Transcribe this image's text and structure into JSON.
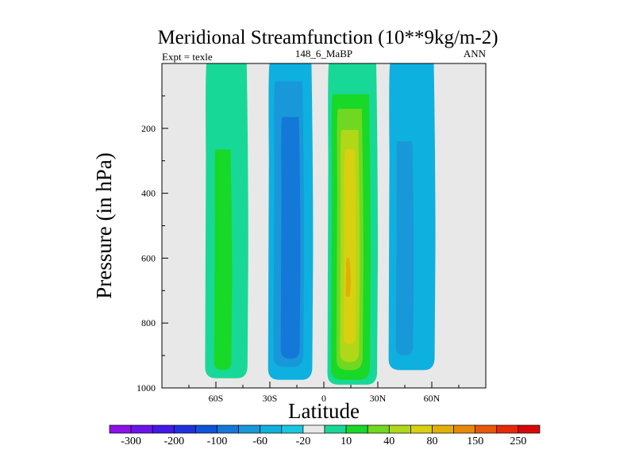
{
  "chart_data": {
    "type": "contour",
    "title": "Meridional Streamfunction (10**9kg/m-2)",
    "left_subtitle": "Expt = texle",
    "center_subtitle": "148_6_MaBP",
    "right_subtitle": "ANN",
    "xlabel": "Latitude",
    "ylabel": "Pressure (in hPa)",
    "x_range": [
      -90,
      90
    ],
    "y_range": [
      0,
      1000
    ],
    "y_inverted": true,
    "x_ticks": [
      {
        "value": -60,
        "label": "60S"
      },
      {
        "value": -30,
        "label": "30S"
      },
      {
        "value": 0,
        "label": "0"
      },
      {
        "value": 30,
        "label": "30N"
      },
      {
        "value": 60,
        "label": "60N"
      }
    ],
    "y_ticks": [
      {
        "value": 200,
        "label": "200"
      },
      {
        "value": 400,
        "label": "400"
      },
      {
        "value": 600,
        "label": "600"
      },
      {
        "value": 800,
        "label": "800"
      },
      {
        "value": 1000,
        "label": "1000"
      }
    ],
    "background_color": "#e8e8e8",
    "colorbar": {
      "colors": [
        "#8e10e8",
        "#6a14e8",
        "#4318e8",
        "#2030e0",
        "#0e54d8",
        "#1478d8",
        "#1898d8",
        "#0eb0e0",
        "#18c8e0",
        "#e8e8e8",
        "#18d898",
        "#18d828",
        "#70d820",
        "#b0d818",
        "#d8d010",
        "#e0b008",
        "#e88808",
        "#e85808",
        "#e82808",
        "#d80808"
      ],
      "labels": [
        {
          "boundary": 1,
          "text": "-300"
        },
        {
          "boundary": 3,
          "text": "-200"
        },
        {
          "boundary": 5,
          "text": "-100"
        },
        {
          "boundary": 7,
          "text": "-60"
        },
        {
          "boundary": 9,
          "text": "-20"
        },
        {
          "boundary": 11,
          "text": "10"
        },
        {
          "boundary": 13,
          "text": "40"
        },
        {
          "boundary": 15,
          "text": "80"
        },
        {
          "boundary": 17,
          "text": "150"
        },
        {
          "boundary": 19,
          "text": "250"
        }
      ]
    },
    "cells": [
      {
        "name": "south-cell",
        "color": "#18d898",
        "lat_range": [
          -66,
          -42
        ],
        "p_range": [
          0,
          970
        ]
      },
      {
        "name": "south-cell",
        "color": "#18d828",
        "lat_range": [
          -61,
          -51
        ],
        "p_range": [
          265,
          945
        ]
      },
      {
        "name": "southern-hadley-cell",
        "color": "#0eb0e0",
        "lat_range": [
          -31,
          -6
        ],
        "p_range": [
          0,
          975
        ]
      },
      {
        "name": "southern-hadley-cell",
        "color": "#1898d8",
        "lat_range": [
          -28,
          -11
        ],
        "p_range": [
          55,
          935
        ]
      },
      {
        "name": "southern-hadley-cell",
        "color": "#1478d8",
        "lat_range": [
          -24,
          -13
        ],
        "p_range": [
          165,
          910
        ]
      },
      {
        "name": "northern-hadley-cell",
        "color": "#18d898",
        "lat_range": [
          2,
          30
        ],
        "p_range": [
          0,
          990
        ]
      },
      {
        "name": "northern-hadley-cell",
        "color": "#18d828",
        "lat_range": [
          4,
          26
        ],
        "p_range": [
          95,
          975
        ]
      },
      {
        "name": "northern-hadley-cell",
        "color": "#70d820",
        "lat_range": [
          7,
          22
        ],
        "p_range": [
          140,
          945
        ]
      },
      {
        "name": "northern-hadley-cell",
        "color": "#b0d818",
        "lat_range": [
          9,
          20
        ],
        "p_range": [
          205,
          920
        ]
      },
      {
        "name": "northern-hadley-cell",
        "color": "#d8d010",
        "lat_range": [
          11,
          18
        ],
        "p_range": [
          265,
          865
        ]
      },
      {
        "name": "northern-hadley-cell",
        "color": "#e0b008",
        "lat_range": [
          12,
          15
        ],
        "p_range": [
          600,
          720
        ]
      },
      {
        "name": "north-cell",
        "color": "#0eb0e0",
        "lat_range": [
          36,
          62
        ],
        "p_range": [
          0,
          945
        ]
      },
      {
        "name": "north-cell",
        "color": "#1898d8",
        "lat_range": [
          40,
          50
        ],
        "p_range": [
          240,
          900
        ]
      }
    ]
  }
}
